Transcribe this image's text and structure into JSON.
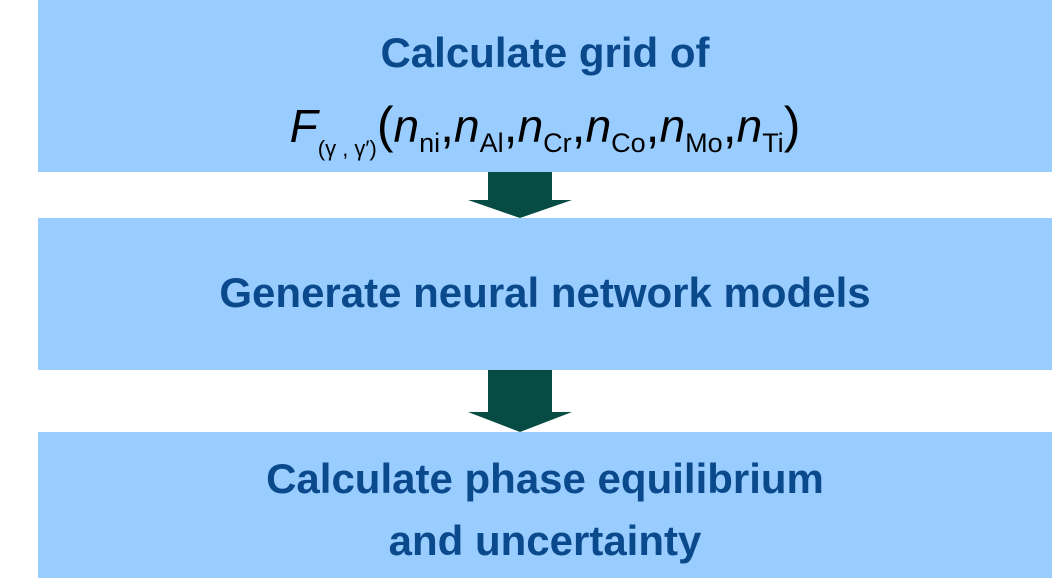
{
  "steps": [
    {
      "label": "Calculate grid of",
      "formula": {
        "func": "F",
        "func_sub": "(γ , γ′)",
        "var": "n",
        "subs": [
          "ni",
          "Al",
          "Cr",
          "Co",
          "Mo",
          "Ti"
        ]
      }
    },
    {
      "label": "Generate neural network models"
    },
    {
      "label_line1": "Calculate phase equilibrium",
      "label_line2": "and uncertainty"
    }
  ],
  "colors": {
    "box_fill": "#99ccff",
    "box_text": "#0a4a8c",
    "arrow": "#064c44"
  }
}
